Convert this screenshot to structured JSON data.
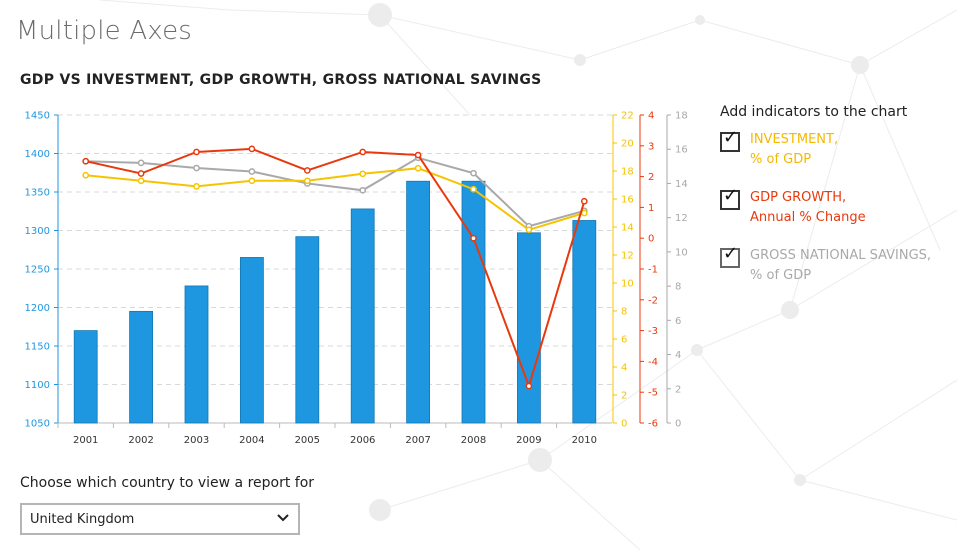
{
  "page": {
    "title": "Multiple Axes"
  },
  "chart_data": {
    "type": "bar+line",
    "title": "GDP VS INVESTMENT, GDP GROWTH, GROSS NATIONAL SAVINGS",
    "categories": [
      "2001",
      "2002",
      "2003",
      "2004",
      "2005",
      "2006",
      "2007",
      "2008",
      "2009",
      "2010"
    ],
    "axes": {
      "gdp": {
        "side": "left",
        "min": 1050,
        "max": 1450,
        "ticks": [
          1050,
          1100,
          1150,
          1200,
          1250,
          1300,
          1350,
          1400,
          1450
        ],
        "color": "#1f97e0"
      },
      "investment": {
        "side": "right",
        "min": 0,
        "max": 22,
        "ticks": [
          0,
          2,
          4,
          6,
          8,
          10,
          12,
          14,
          16,
          18,
          20,
          22
        ],
        "color": "#f5c400"
      },
      "growth": {
        "side": "right",
        "min": -6,
        "max": 4,
        "ticks": [
          -6,
          -5,
          -4,
          -3,
          -2,
          -1,
          0,
          1,
          2,
          3,
          4
        ],
        "color": "#e8390e"
      },
      "savings": {
        "side": "right",
        "min": 0,
        "max": 18,
        "ticks": [
          0,
          2,
          4,
          6,
          8,
          10,
          12,
          14,
          16,
          18
        ],
        "color": "#a9a9a9"
      }
    },
    "series": [
      {
        "axis": "gdp",
        "type": "bar",
        "values": [
          1170,
          1195,
          1228,
          1265,
          1292,
          1328,
          1364,
          1364,
          1297,
          1313
        ]
      },
      {
        "axis": "investment",
        "type": "line",
        "values": [
          17.7,
          17.3,
          16.9,
          17.3,
          17.3,
          17.8,
          18.2,
          16.7,
          13.8,
          15.0
        ]
      },
      {
        "axis": "growth",
        "type": "line",
        "values": [
          2.5,
          2.1,
          2.8,
          2.9,
          2.2,
          2.8,
          2.7,
          0.0,
          -4.8,
          1.2
        ]
      },
      {
        "axis": "savings",
        "type": "line",
        "values": [
          15.3,
          15.2,
          14.9,
          14.7,
          14.0,
          13.6,
          15.5,
          14.6,
          11.5,
          12.4
        ]
      }
    ],
    "grid": true
  },
  "indicators_panel": {
    "heading": "Add indicators to the chart",
    "items": [
      {
        "line1": "INVESTMENT,",
        "line2": "% of GDP",
        "checked": true,
        "color": "#f5b800"
      },
      {
        "line1": "GDP GROWTH,",
        "line2": "Annual % Change",
        "checked": true,
        "color": "#e8390e"
      },
      {
        "line1": "GROSS NATIONAL SAVINGS,",
        "line2": "% of GDP",
        "checked": true,
        "color": "#a9a9a9"
      }
    ]
  },
  "country": {
    "label": "Choose which country to view a report for",
    "selected": "United Kingdom",
    "chevron_icon": "chevron-down-icon"
  }
}
